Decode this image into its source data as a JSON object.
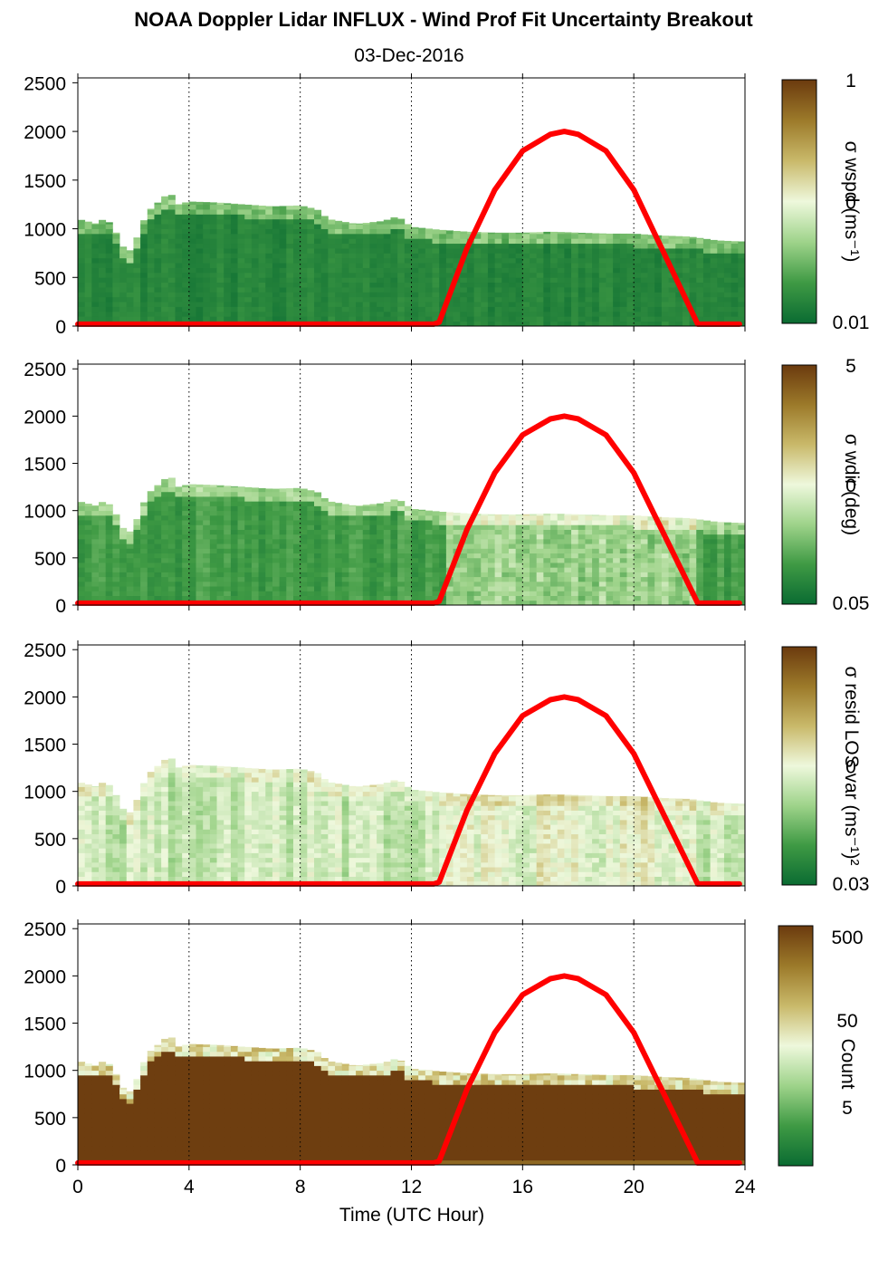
{
  "title": "NOAA Doppler Lidar INFLUX - Wind Prof Fit Uncertainty Breakout",
  "subtitle": "03-Dec-2016",
  "colors": {
    "curve": "#ff0000",
    "colormap": [
      "#0a6b32",
      "#3f9a44",
      "#9ed38a",
      "#eef8dc",
      "#c9b96a",
      "#9c7a2a",
      "#6b3a0e"
    ]
  },
  "chart_data": [
    {
      "type": "heatmap",
      "name": "wspd-uncertainty",
      "xlabel": "",
      "ylabel": "",
      "x_ticks": [
        0,
        4,
        8,
        12,
        16,
        20,
        24
      ],
      "xlim": [
        0,
        24
      ],
      "y_ticks": [
        0,
        500,
        1000,
        1500,
        2000,
        2500
      ],
      "ylim": [
        0,
        2550
      ],
      "colorbar": {
        "label": "σ wspd (ms⁻¹)",
        "ticks": [
          "1",
          "0",
          "0.01"
        ],
        "scale": "log"
      },
      "grid": "dotted vertical at x ticks",
      "top_profile": [
        [
          0,
          1100
        ],
        [
          0.7,
          1050
        ],
        [
          1,
          1120
        ],
        [
          1.4,
          950
        ],
        [
          1.6,
          820
        ],
        [
          2,
          760
        ],
        [
          2.2,
          1000
        ],
        [
          2.6,
          1200
        ],
        [
          3,
          1300
        ],
        [
          3.3,
          1380
        ],
        [
          3.6,
          1250
        ],
        [
          4,
          1280
        ],
        [
          5,
          1270
        ],
        [
          6,
          1250
        ],
        [
          7,
          1230
        ],
        [
          8,
          1240
        ],
        [
          8.6,
          1200
        ],
        [
          9,
          1100
        ],
        [
          10,
          1050
        ],
        [
          11,
          1080
        ],
        [
          11.5,
          1130
        ],
        [
          12,
          1020
        ],
        [
          13,
          990
        ],
        [
          14,
          970
        ],
        [
          15,
          960
        ],
        [
          16,
          960
        ],
        [
          17,
          970
        ],
        [
          18,
          960
        ],
        [
          19,
          950
        ],
        [
          20,
          950
        ],
        [
          21,
          930
        ],
        [
          22,
          920
        ],
        [
          23,
          880
        ],
        [
          23.8,
          870
        ]
      ],
      "curve": {
        "x": [
          0,
          12.8,
          13,
          14,
          15,
          16,
          17,
          17.5,
          18,
          19,
          20,
          21,
          22,
          22.3,
          23.8
        ],
        "y": [
          20,
          20,
          40,
          800,
          1400,
          1800,
          1970,
          2000,
          1970,
          1800,
          1400,
          800,
          200,
          20,
          20
        ]
      }
    },
    {
      "type": "heatmap",
      "name": "wdir-uncertainty",
      "xlabel": "",
      "ylabel": "",
      "x_ticks": [
        0,
        4,
        8,
        12,
        16,
        20,
        24
      ],
      "xlim": [
        0,
        24
      ],
      "y_ticks": [
        0,
        500,
        1000,
        1500,
        2000,
        2500
      ],
      "ylim": [
        0,
        2550
      ],
      "colorbar": {
        "label": "σ wdir (deg)",
        "ticks": [
          "5",
          "0",
          "0.05"
        ],
        "scale": "log"
      },
      "grid": "dotted vertical at x ticks",
      "top_profile": [
        [
          0,
          1100
        ],
        [
          0.7,
          1050
        ],
        [
          1,
          1120
        ],
        [
          1.4,
          950
        ],
        [
          1.6,
          820
        ],
        [
          2,
          760
        ],
        [
          2.2,
          1000
        ],
        [
          2.6,
          1200
        ],
        [
          3,
          1300
        ],
        [
          3.3,
          1380
        ],
        [
          3.6,
          1250
        ],
        [
          4,
          1280
        ],
        [
          5,
          1270
        ],
        [
          6,
          1250
        ],
        [
          7,
          1230
        ],
        [
          8,
          1240
        ],
        [
          8.6,
          1200
        ],
        [
          9,
          1100
        ],
        [
          10,
          1050
        ],
        [
          11,
          1080
        ],
        [
          11.5,
          1130
        ],
        [
          12,
          1020
        ],
        [
          13,
          990
        ],
        [
          14,
          970
        ],
        [
          15,
          960
        ],
        [
          16,
          960
        ],
        [
          17,
          970
        ],
        [
          18,
          960
        ],
        [
          19,
          950
        ],
        [
          20,
          950
        ],
        [
          21,
          930
        ],
        [
          22,
          920
        ],
        [
          23,
          880
        ],
        [
          23.8,
          870
        ]
      ],
      "curve": {
        "x": [
          0,
          12.8,
          13,
          14,
          15,
          16,
          17,
          17.5,
          18,
          19,
          20,
          21,
          22,
          22.3,
          23.8
        ],
        "y": [
          20,
          20,
          40,
          800,
          1400,
          1800,
          1970,
          2000,
          1970,
          1800,
          1400,
          800,
          200,
          20,
          20
        ]
      }
    },
    {
      "type": "heatmap",
      "name": "resid-los-var",
      "xlabel": "",
      "ylabel": "",
      "x_ticks": [
        0,
        4,
        8,
        12,
        16,
        20,
        24
      ],
      "xlim": [
        0,
        24
      ],
      "y_ticks": [
        0,
        500,
        1000,
        1500,
        2000,
        2500
      ],
      "ylim": [
        0,
        2550
      ],
      "colorbar": {
        "label": "σ resid LOS var (ms⁻¹)²",
        "ticks": [
          "0",
          "0.03"
        ],
        "scale": "log"
      },
      "grid": "dotted vertical at x ticks",
      "top_profile": [
        [
          0,
          1100
        ],
        [
          0.7,
          1050
        ],
        [
          1,
          1120
        ],
        [
          1.4,
          950
        ],
        [
          1.6,
          820
        ],
        [
          2,
          760
        ],
        [
          2.2,
          1000
        ],
        [
          2.6,
          1200
        ],
        [
          3,
          1300
        ],
        [
          3.3,
          1380
        ],
        [
          3.6,
          1250
        ],
        [
          4,
          1280
        ],
        [
          5,
          1270
        ],
        [
          6,
          1250
        ],
        [
          7,
          1230
        ],
        [
          8,
          1240
        ],
        [
          8.6,
          1200
        ],
        [
          9,
          1100
        ],
        [
          10,
          1050
        ],
        [
          11,
          1080
        ],
        [
          11.5,
          1130
        ],
        [
          12,
          1020
        ],
        [
          13,
          990
        ],
        [
          14,
          970
        ],
        [
          15,
          960
        ],
        [
          16,
          960
        ],
        [
          17,
          970
        ],
        [
          18,
          960
        ],
        [
          19,
          950
        ],
        [
          20,
          950
        ],
        [
          21,
          930
        ],
        [
          22,
          920
        ],
        [
          23,
          880
        ],
        [
          23.8,
          870
        ]
      ],
      "curve": {
        "x": [
          0,
          12.8,
          13,
          14,
          15,
          16,
          17,
          17.5,
          18,
          19,
          20,
          21,
          22,
          22.3,
          23.8
        ],
        "y": [
          20,
          20,
          40,
          800,
          1400,
          1800,
          1970,
          2000,
          1970,
          1800,
          1400,
          800,
          200,
          20,
          20
        ]
      }
    },
    {
      "type": "heatmap",
      "name": "count",
      "xlabel": "Time (UTC Hour)",
      "ylabel": "",
      "x_ticks": [
        0,
        4,
        8,
        12,
        16,
        20,
        24
      ],
      "xlim": [
        0,
        24
      ],
      "y_ticks": [
        0,
        500,
        1000,
        1500,
        2000,
        2500
      ],
      "ylim": [
        0,
        2550
      ],
      "colorbar": {
        "label": "Count",
        "ticks": [
          "500",
          "50",
          "5"
        ],
        "scale": "log"
      },
      "grid": "dotted vertical at x ticks",
      "top_profile": [
        [
          0,
          1100
        ],
        [
          0.7,
          1050
        ],
        [
          1,
          1120
        ],
        [
          1.4,
          950
        ],
        [
          1.6,
          820
        ],
        [
          2,
          760
        ],
        [
          2.2,
          1000
        ],
        [
          2.6,
          1200
        ],
        [
          3,
          1300
        ],
        [
          3.3,
          1380
        ],
        [
          3.6,
          1250
        ],
        [
          4,
          1280
        ],
        [
          5,
          1270
        ],
        [
          6,
          1250
        ],
        [
          7,
          1230
        ],
        [
          8,
          1240
        ],
        [
          8.6,
          1200
        ],
        [
          9,
          1100
        ],
        [
          10,
          1050
        ],
        [
          11,
          1080
        ],
        [
          11.5,
          1130
        ],
        [
          12,
          1020
        ],
        [
          13,
          990
        ],
        [
          14,
          970
        ],
        [
          15,
          960
        ],
        [
          16,
          960
        ],
        [
          17,
          970
        ],
        [
          18,
          960
        ],
        [
          19,
          950
        ],
        [
          20,
          950
        ],
        [
          21,
          930
        ],
        [
          22,
          920
        ],
        [
          23,
          880
        ],
        [
          23.8,
          870
        ]
      ],
      "curve": {
        "x": [
          0,
          12.8,
          13,
          14,
          15,
          16,
          17,
          17.5,
          18,
          19,
          20,
          21,
          22,
          22.3,
          23.8
        ],
        "y": [
          20,
          20,
          40,
          800,
          1400,
          1800,
          1970,
          2000,
          1970,
          1800,
          1400,
          800,
          200,
          20,
          20
        ]
      }
    }
  ]
}
